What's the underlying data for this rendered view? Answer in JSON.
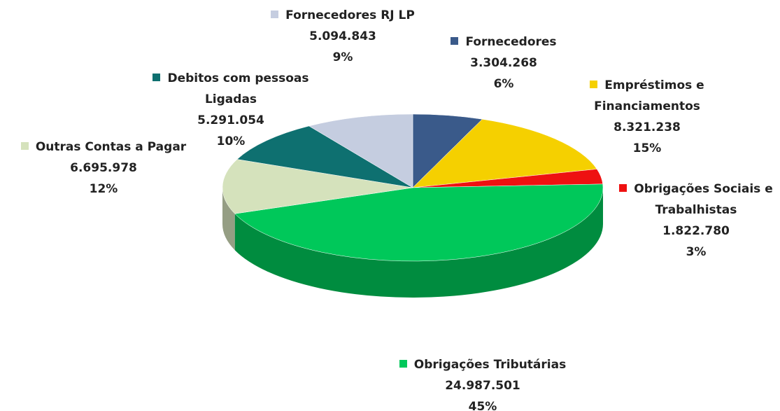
{
  "chart_data": {
    "type": "pie",
    "categories": [
      "Fornecedores",
      "Empréstimos e Financiamentos",
      "Obrigações Sociais e Trabalhistas",
      "Obrigações Tributárias",
      "Outras Contas a Pagar",
      "Debitos com pessoas Ligadas",
      "Fornecedores RJ LP"
    ],
    "values": [
      3304268,
      8321238,
      1822780,
      24987501,
      6695978,
      5291054,
      5094843
    ],
    "value_labels": [
      "3.304.268",
      "8.321.238",
      "1.822.780",
      "24.987.501",
      "6.695.978",
      "5.291.054",
      "5.094.843"
    ],
    "percentages": [
      6,
      15,
      3,
      45,
      12,
      10,
      9
    ],
    "percentage_labels": [
      "6%",
      "15%",
      "3%",
      "45%",
      "12%",
      "10%",
      "9%"
    ],
    "colors": [
      "#3a5a8a",
      "#f5d000",
      "#ee1111",
      "#00c85a",
      "#d5e2bc",
      "#0e7070",
      "#c5cde0"
    ]
  }
}
